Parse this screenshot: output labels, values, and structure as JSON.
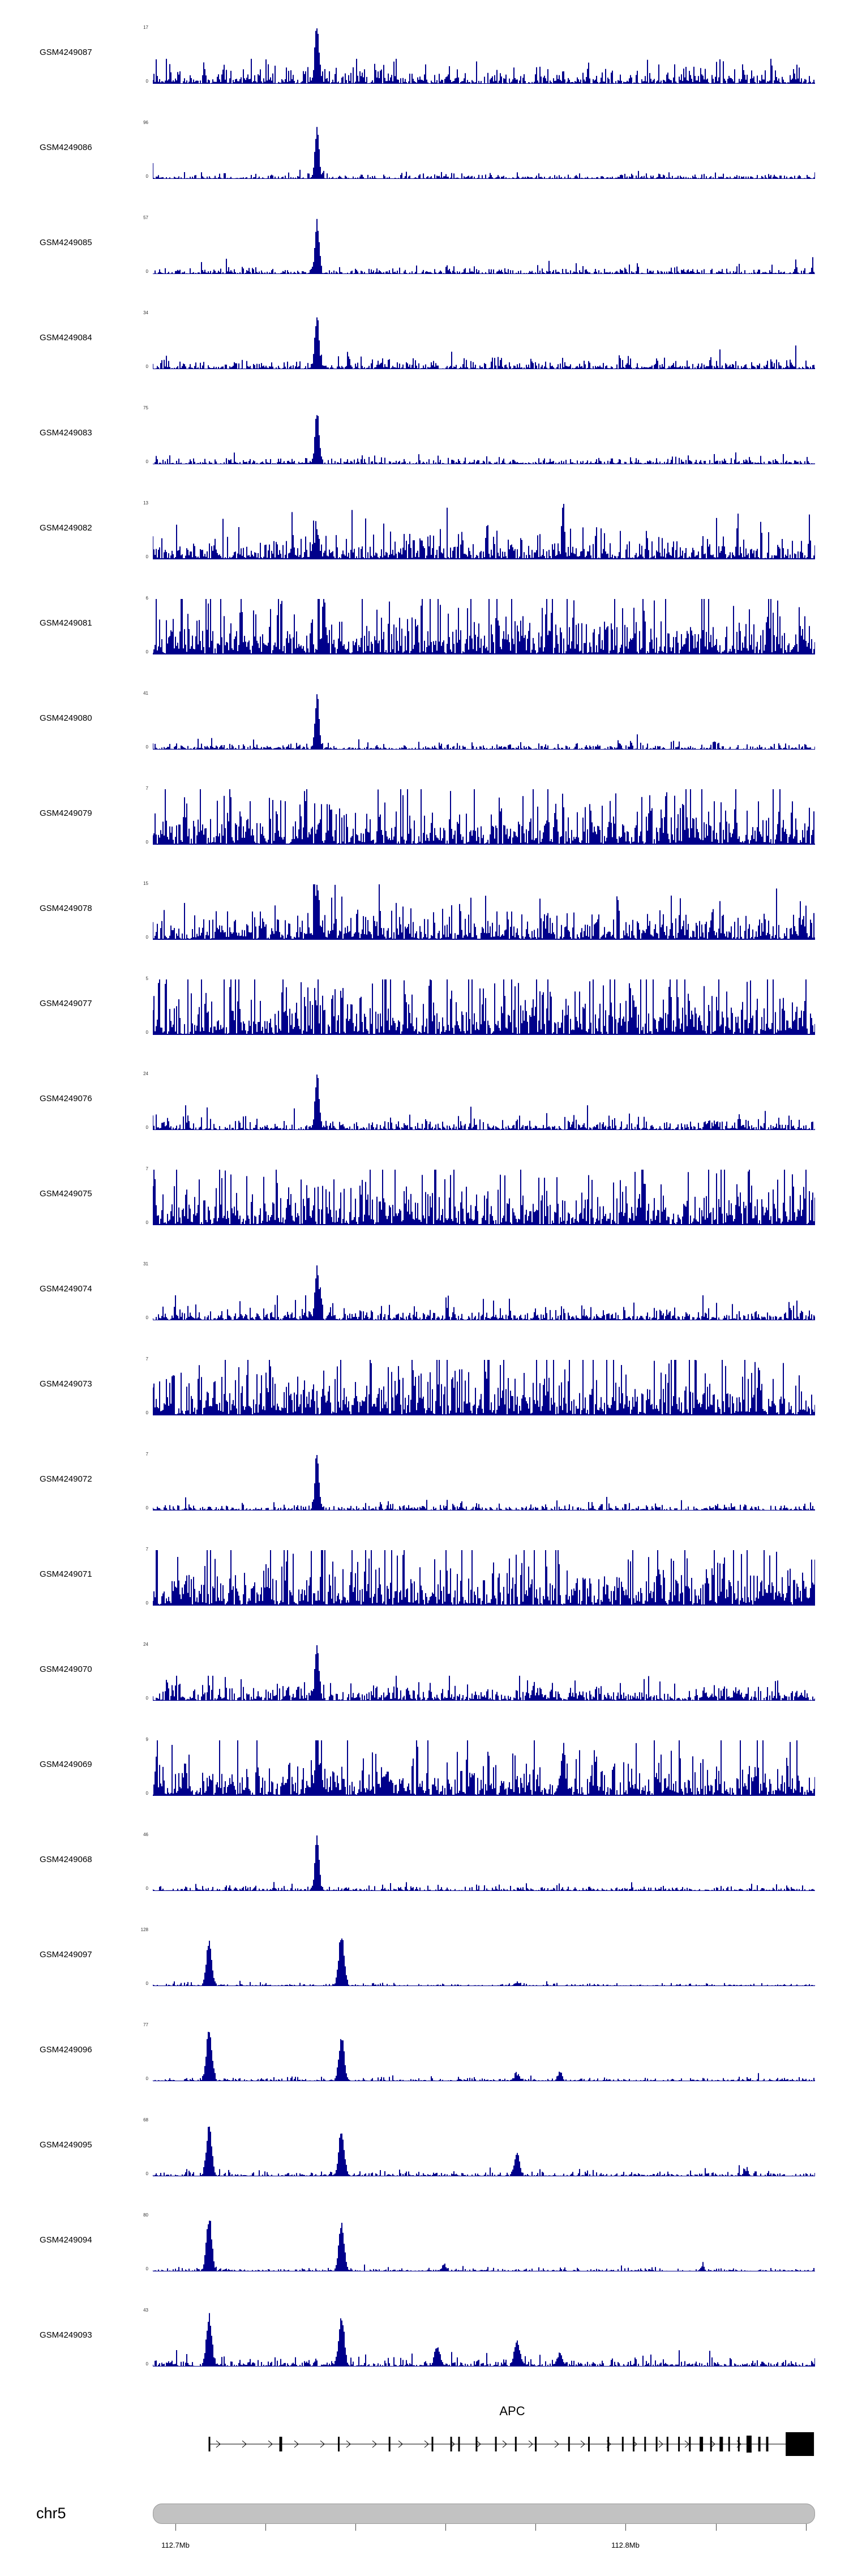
{
  "chart_data": {
    "type": "genome-browser-coverage-tracks",
    "locus": {
      "chromosome": "chr5",
      "tick_labels": [
        "112.7Mb",
        "112.8Mb"
      ]
    },
    "signal_color": "#00008b",
    "tracks": [
      {
        "label": "GSM4249087",
        "y_max": 17,
        "y_min": 0,
        "pattern": "noisy_peak",
        "seed": 101,
        "noise": 0.1,
        "peaks": [
          {
            "p": 0.248,
            "h": 1.0,
            "w": 0.003
          }
        ]
      },
      {
        "label": "GSM4249086",
        "y_max": 96,
        "y_min": 0,
        "pattern": "clean_peak",
        "seed": 102,
        "noise": 0.03,
        "peaks": [
          {
            "p": 0.248,
            "h": 1.0,
            "w": 0.003
          }
        ]
      },
      {
        "label": "GSM4249085",
        "y_max": 57,
        "y_min": 0,
        "pattern": "clean_peak",
        "seed": 103,
        "noise": 0.04,
        "peaks": [
          {
            "p": 0.248,
            "h": 1.0,
            "w": 0.003
          }
        ]
      },
      {
        "label": "GSM4249084",
        "y_max": 34,
        "y_min": 0,
        "pattern": "clean_peak",
        "seed": 104,
        "noise": 0.06,
        "peaks": [
          {
            "p": 0.248,
            "h": 1.0,
            "w": 0.003
          }
        ]
      },
      {
        "label": "GSM4249083",
        "y_max": 75,
        "y_min": 0,
        "pattern": "clean_peak",
        "seed": 105,
        "noise": 0.04,
        "peaks": [
          {
            "p": 0.248,
            "h": 1.0,
            "w": 0.003
          }
        ]
      },
      {
        "label": "GSM4249082",
        "y_max": 13,
        "y_min": 0,
        "pattern": "dense",
        "seed": 106,
        "noise": 0.16,
        "peaks": [
          {
            "p": 0.248,
            "h": 0.55,
            "w": 0.003
          },
          {
            "p": 0.62,
            "h": 0.85,
            "w": 0.002
          }
        ]
      },
      {
        "label": "GSM4249081",
        "y_max": 6,
        "y_min": 0,
        "pattern": "dense",
        "seed": 107,
        "noise": 0.32,
        "peaks": []
      },
      {
        "label": "GSM4249080",
        "y_max": 41,
        "y_min": 0,
        "pattern": "clean_peak",
        "seed": 108,
        "noise": 0.04,
        "peaks": [
          {
            "p": 0.248,
            "h": 1.0,
            "w": 0.003
          }
        ]
      },
      {
        "label": "GSM4249079",
        "y_max": 7,
        "y_min": 0,
        "pattern": "dense",
        "seed": 109,
        "noise": 0.28,
        "peaks": [
          {
            "p": 0.23,
            "h": 0.8,
            "w": 0.002
          }
        ]
      },
      {
        "label": "GSM4249078",
        "y_max": 15,
        "y_min": 0,
        "pattern": "dense",
        "seed": 110,
        "noise": 0.2,
        "peaks": [
          {
            "p": 0.248,
            "h": 1.0,
            "w": 0.003
          }
        ]
      },
      {
        "label": "GSM4249077",
        "y_max": 5,
        "y_min": 0,
        "pattern": "dense",
        "seed": 111,
        "noise": 0.35,
        "peaks": []
      },
      {
        "label": "GSM4249076",
        "y_max": 24,
        "y_min": 0,
        "pattern": "clean_peak",
        "seed": 112,
        "noise": 0.07,
        "peaks": [
          {
            "p": 0.248,
            "h": 1.0,
            "w": 0.003
          }
        ]
      },
      {
        "label": "GSM4249075",
        "y_max": 7,
        "y_min": 0,
        "pattern": "dense",
        "seed": 113,
        "noise": 0.3,
        "peaks": [
          {
            "p": 0.74,
            "h": 0.9,
            "w": 0.002
          }
        ]
      },
      {
        "label": "GSM4249074",
        "y_max": 31,
        "y_min": 0,
        "pattern": "noisy_peak",
        "seed": 114,
        "noise": 0.08,
        "peaks": [
          {
            "p": 0.248,
            "h": 1.0,
            "w": 0.003
          }
        ]
      },
      {
        "label": "GSM4249073",
        "y_max": 7,
        "y_min": 0,
        "pattern": "dense",
        "seed": 115,
        "noise": 0.33,
        "peaks": []
      },
      {
        "label": "GSM4249072",
        "y_max": 7,
        "y_min": 0,
        "pattern": "clean_peak",
        "seed": 116,
        "noise": 0.04,
        "peaks": [
          {
            "p": 0.248,
            "h": 1.0,
            "w": 0.003
          }
        ]
      },
      {
        "label": "GSM4249071",
        "y_max": 7,
        "y_min": 0,
        "pattern": "dense",
        "seed": 117,
        "noise": 0.33,
        "peaks": []
      },
      {
        "label": "GSM4249070",
        "y_max": 24,
        "y_min": 0,
        "pattern": "noisy_peak",
        "seed": 118,
        "noise": 0.1,
        "peaks": [
          {
            "p": 0.248,
            "h": 1.0,
            "w": 0.003
          }
        ]
      },
      {
        "label": "GSM4249069",
        "y_max": 9,
        "y_min": 0,
        "pattern": "dense",
        "seed": 119,
        "noise": 0.24,
        "peaks": [
          {
            "p": 0.248,
            "h": 1.0,
            "w": 0.003
          },
          {
            "p": 0.62,
            "h": 0.5,
            "w": 0.003
          }
        ]
      },
      {
        "label": "GSM4249068",
        "y_max": 46,
        "y_min": 0,
        "pattern": "clean_peak",
        "seed": 120,
        "noise": 0.03,
        "peaks": [
          {
            "p": 0.248,
            "h": 1.0,
            "w": 0.003
          }
        ]
      },
      {
        "label": "GSM4249097",
        "y_max": 128,
        "y_min": 0,
        "pattern": "discrete_peaks",
        "seed": 121,
        "noise": 0.015,
        "peaks": [
          {
            "p": 0.085,
            "h": 0.85,
            "w": 0.004
          },
          {
            "p": 0.285,
            "h": 1.0,
            "w": 0.004
          },
          {
            "p": 0.55,
            "h": 0.06,
            "w": 0.004
          }
        ]
      },
      {
        "label": "GSM4249096",
        "y_max": 77,
        "y_min": 0,
        "pattern": "discrete_peaks",
        "seed": 122,
        "noise": 0.02,
        "peaks": [
          {
            "p": 0.085,
            "h": 1.0,
            "w": 0.004
          },
          {
            "p": 0.285,
            "h": 0.8,
            "w": 0.004
          },
          {
            "p": 0.55,
            "h": 0.12,
            "w": 0.004
          },
          {
            "p": 0.615,
            "h": 0.18,
            "w": 0.003
          }
        ]
      },
      {
        "label": "GSM4249095",
        "y_max": 68,
        "y_min": 0,
        "pattern": "discrete_peaks",
        "seed": 123,
        "noise": 0.025,
        "peaks": [
          {
            "p": 0.085,
            "h": 0.95,
            "w": 0.004
          },
          {
            "p": 0.285,
            "h": 0.85,
            "w": 0.004
          },
          {
            "p": 0.55,
            "h": 0.4,
            "w": 0.004
          },
          {
            "p": 0.895,
            "h": 0.1,
            "w": 0.003
          }
        ]
      },
      {
        "label": "GSM4249094",
        "y_max": 80,
        "y_min": 0,
        "pattern": "discrete_peaks",
        "seed": 124,
        "noise": 0.02,
        "peaks": [
          {
            "p": 0.085,
            "h": 1.0,
            "w": 0.004
          },
          {
            "p": 0.285,
            "h": 0.9,
            "w": 0.004
          },
          {
            "p": 0.44,
            "h": 0.12,
            "w": 0.003
          },
          {
            "p": 0.83,
            "h": 0.08,
            "w": 0.003
          }
        ]
      },
      {
        "label": "GSM4249093",
        "y_max": 43,
        "y_min": 0,
        "pattern": "discrete_peaks",
        "seed": 125,
        "noise": 0.045,
        "peaks": [
          {
            "p": 0.085,
            "h": 0.9,
            "w": 0.004
          },
          {
            "p": 0.285,
            "h": 0.95,
            "w": 0.004
          },
          {
            "p": 0.43,
            "h": 0.35,
            "w": 0.004
          },
          {
            "p": 0.55,
            "h": 0.45,
            "w": 0.004
          },
          {
            "p": 0.615,
            "h": 0.25,
            "w": 0.003
          }
        ]
      }
    ],
    "gene_track": {
      "gene_name": "APC",
      "strand": "+",
      "start_frac": 0.0855,
      "end_frac": 0.998,
      "exons": [
        {
          "p": 0.0,
          "w": 3,
          "h": 26
        },
        {
          "p": 0.118,
          "w": 5,
          "h": 26
        },
        {
          "p": 0.214,
          "w": 3,
          "h": 26
        },
        {
          "p": 0.298,
          "w": 3,
          "h": 26
        },
        {
          "p": 0.369,
          "w": 3,
          "h": 26
        },
        {
          "p": 0.4,
          "w": 3,
          "h": 26
        },
        {
          "p": 0.413,
          "w": 3,
          "h": 26
        },
        {
          "p": 0.442,
          "w": 3,
          "h": 26
        },
        {
          "p": 0.474,
          "w": 3,
          "h": 26
        },
        {
          "p": 0.507,
          "w": 3,
          "h": 26
        },
        {
          "p": 0.54,
          "w": 3,
          "h": 26
        },
        {
          "p": 0.595,
          "w": 3,
          "h": 26
        },
        {
          "p": 0.628,
          "w": 3,
          "h": 26
        },
        {
          "p": 0.66,
          "w": 3,
          "h": 26
        },
        {
          "p": 0.684,
          "w": 3,
          "h": 26
        },
        {
          "p": 0.702,
          "w": 3,
          "h": 26
        },
        {
          "p": 0.721,
          "w": 3,
          "h": 26
        },
        {
          "p": 0.74,
          "w": 3,
          "h": 26
        },
        {
          "p": 0.758,
          "w": 3,
          "h": 26
        },
        {
          "p": 0.777,
          "w": 3,
          "h": 26
        },
        {
          "p": 0.795,
          "w": 3,
          "h": 26
        },
        {
          "p": 0.814,
          "w": 6,
          "h": 26
        },
        {
          "p": 0.83,
          "w": 3,
          "h": 26
        },
        {
          "p": 0.847,
          "w": 6,
          "h": 26
        },
        {
          "p": 0.86,
          "w": 3,
          "h": 26
        },
        {
          "p": 0.876,
          "w": 3,
          "h": 26
        },
        {
          "p": 0.893,
          "w": 9,
          "h": 30
        },
        {
          "p": 0.91,
          "w": 4,
          "h": 26
        },
        {
          "p": 0.923,
          "w": 4,
          "h": 26
        },
        {
          "p": 0.977,
          "w": 50,
          "h": 42
        }
      ]
    },
    "ideogram": {
      "chromosome_label": "chr5",
      "color": "#c2c2c2"
    },
    "genome_axis": {
      "ticks": [
        {
          "f": 0.034,
          "label": "112.7Mb"
        },
        {
          "f": 0.17
        },
        {
          "f": 0.306
        },
        {
          "f": 0.442
        },
        {
          "f": 0.578
        },
        {
          "f": 0.714,
          "label": "112.8Mb"
        },
        {
          "f": 0.85
        },
        {
          "f": 0.986
        }
      ]
    }
  }
}
